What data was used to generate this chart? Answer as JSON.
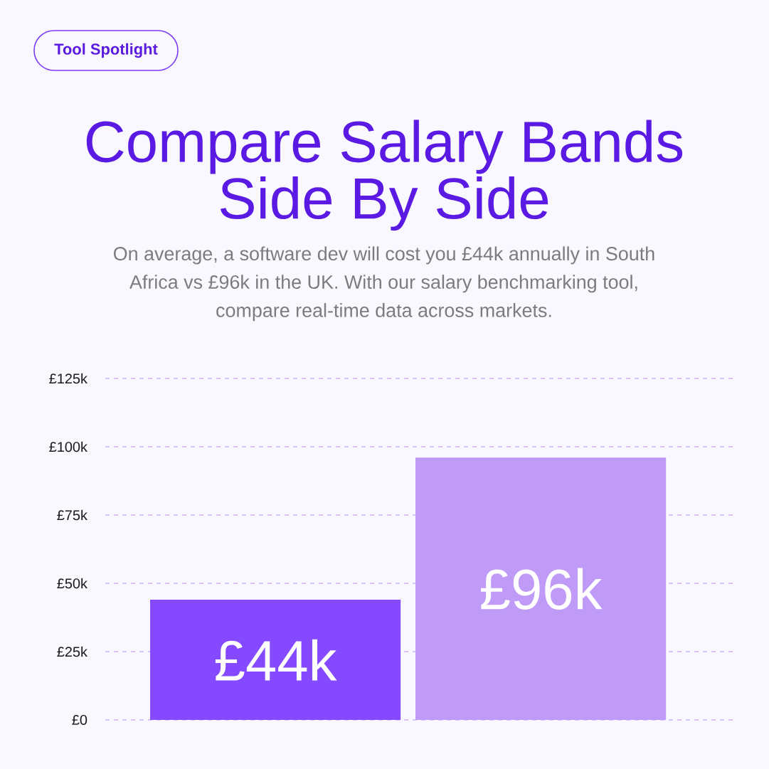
{
  "chart_data": {
    "type": "bar",
    "title": "Compare Salary Bands Side By Side",
    "subtitle": "On average, a software dev will cost you £44k annually in South Africa vs £96k in the UK. With our salary benchmarking tool, compare real-time data across markets.",
    "annotations": [
      "Tool Spotlight"
    ],
    "categories": [
      null,
      null
    ],
    "values": [
      44,
      96
    ],
    "colors": [
      "#8549ff",
      "#bf9af7"
    ],
    "value_labels": [
      "£44k",
      "£96k"
    ],
    "ylim": [
      0,
      125
    ],
    "yticks": [
      {
        "value": 0,
        "label": "£0"
      },
      {
        "value": 25,
        "label": "£25k"
      },
      {
        "value": 50,
        "label": "£50k"
      },
      {
        "value": 75,
        "label": "£75k"
      },
      {
        "value": 100,
        "label": "£100k"
      },
      {
        "value": 125,
        "label": "£125k"
      }
    ],
    "grid": "y"
  }
}
